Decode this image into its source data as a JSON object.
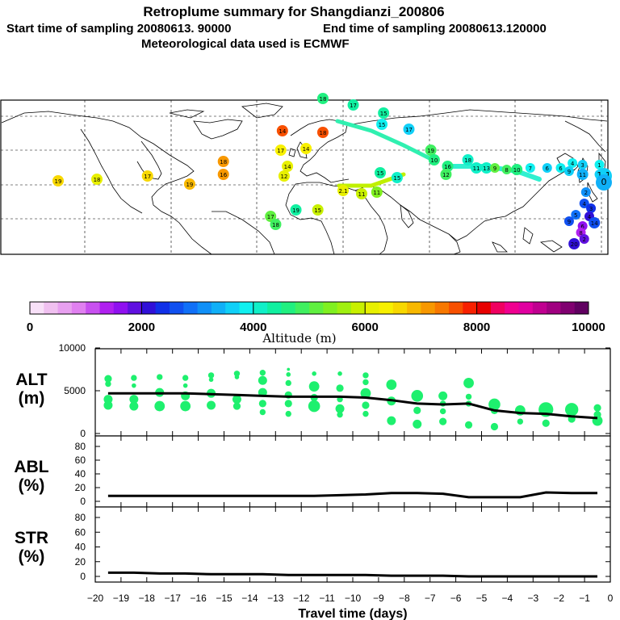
{
  "header": {
    "title": "Retroplume summary for Shangdianzi_200806",
    "start_label": "Start time of sampling 20080613. 90000",
    "end_label": "End time of sampling 20080613.120000",
    "met_label": "Meteorological data used is ECMWF"
  },
  "colorbar": {
    "ticks": [
      "0",
      "2000",
      "4000",
      "6000",
      "8000",
      "10000"
    ],
    "label": "Altitude (m)",
    "colors": [
      "#f8e0f8",
      "#f0c0f0",
      "#e8a0f0",
      "#e080f0",
      "#c850f0",
      "#b020f0",
      "#9010f0",
      "#6010e0",
      "#3010d8",
      "#1030e8",
      "#1050f0",
      "#1070f8",
      "#1090f8",
      "#10b0f8",
      "#10d0f8",
      "#10f0f0",
      "#10f0c8",
      "#10f0a0",
      "#20f080",
      "#40f060",
      "#60f040",
      "#80f020",
      "#a0f010",
      "#c8f000",
      "#e8f000",
      "#f8f000",
      "#f8d800",
      "#f8b800",
      "#f89800",
      "#f87800",
      "#f85000",
      "#f82000",
      "#e80000",
      "#f00060",
      "#f00090",
      "#e000a0",
      "#c00090",
      "#a00080",
      "#800070",
      "#600060"
    ]
  },
  "map_labels": [
    {
      "lon": -135,
      "lat": 3,
      "text": "19",
      "alt": 6500
    },
    {
      "lon": -112,
      "lat": 4,
      "text": "18",
      "alt": 6200
    },
    {
      "lon": -82,
      "lat": 6,
      "text": "17",
      "alt": 6500
    },
    {
      "lon": -57,
      "lat": 1,
      "text": "19",
      "alt": 6800
    },
    {
      "lon": -37,
      "lat": 15,
      "text": "18",
      "alt": 7000
    },
    {
      "lon": -37,
      "lat": 7,
      "text": "16",
      "alt": 7200
    },
    {
      "lon": -3,
      "lat": 22,
      "text": "17",
      "alt": 6400
    },
    {
      "lon": -2,
      "lat": 34,
      "text": "14",
      "alt": 7500
    },
    {
      "lon": 22,
      "lat": 33,
      "text": "18",
      "alt": 7600
    },
    {
      "lon": 12,
      "lat": 23,
      "text": "14",
      "alt": 6300
    },
    {
      "lon": 1,
      "lat": 12,
      "text": "14",
      "alt": 6000
    },
    {
      "lon": -1,
      "lat": 6,
      "text": "12",
      "alt": 6100
    },
    {
      "lon": -9,
      "lat": -19,
      "text": "17",
      "alt": 5000
    },
    {
      "lon": -6,
      "lat": -24,
      "text": "18",
      "alt": 4800
    },
    {
      "lon": 6,
      "lat": -15,
      "text": "19",
      "alt": 4400
    },
    {
      "lon": 19,
      "lat": -15,
      "text": "15",
      "alt": 5800
    },
    {
      "lon": 34,
      "lat": -3,
      "text": "2.1",
      "alt": 6000
    },
    {
      "lon": 45,
      "lat": -5,
      "text": "11",
      "alt": 5800
    },
    {
      "lon": 54,
      "lat": -4,
      "text": "11",
      "alt": 5400
    },
    {
      "lon": 56,
      "lat": 8,
      "text": "15",
      "alt": 4400
    },
    {
      "lon": 66,
      "lat": 5,
      "text": "15",
      "alt": 4200
    },
    {
      "lon": 57,
      "lat": 38,
      "text": "15",
      "alt": 3800
    },
    {
      "lon": 73,
      "lat": 35,
      "text": "17",
      "alt": 3600
    },
    {
      "lon": 86,
      "lat": 22,
      "text": "19",
      "alt": 4800
    },
    {
      "lon": 88,
      "lat": 16,
      "text": "10",
      "alt": 4600
    },
    {
      "lon": 96,
      "lat": 12,
      "text": "16",
      "alt": 4700
    },
    {
      "lon": 95,
      "lat": 7,
      "text": "12",
      "alt": 4900
    },
    {
      "lon": 108,
      "lat": 16,
      "text": "18",
      "alt": 4000
    },
    {
      "lon": 113,
      "lat": 11,
      "text": "11",
      "alt": 4200
    },
    {
      "lon": 119,
      "lat": 11,
      "text": "13",
      "alt": 4200
    },
    {
      "lon": 124,
      "lat": 11,
      "text": "9",
      "alt": 5000
    },
    {
      "lon": 131,
      "lat": 10,
      "text": "8",
      "alt": 4900
    },
    {
      "lon": 137,
      "lat": 10,
      "text": "10",
      "alt": 4700
    },
    {
      "lon": 145,
      "lat": 11,
      "text": "7",
      "alt": 3900
    },
    {
      "lon": 155,
      "lat": 11,
      "text": "6",
      "alt": 3700
    },
    {
      "lon": 163,
      "lat": 11,
      "text": "6",
      "alt": 3900
    },
    {
      "lon": 170,
      "lat": 14,
      "text": "4",
      "alt": 3800
    },
    {
      "lon": 168,
      "lat": 9,
      "text": "9",
      "alt": 3500
    },
    {
      "lon": 176,
      "lat": 13,
      "text": "3",
      "alt": 3600
    },
    {
      "lon": 176,
      "lat": 7,
      "text": "11",
      "alt": 3400
    },
    {
      "lon": 186,
      "lat": 13,
      "text": "1",
      "alt": 3800
    },
    {
      "lon": 186,
      "lat": 7,
      "text": "5",
      "alt": 3600
    },
    {
      "lon": 199,
      "lat": 6,
      "text": "1.1",
      "alt": 3500
    },
    {
      "lon": 190,
      "lat": 2,
      "text": "0",
      "alt": 3300
    },
    {
      "lon": 178,
      "lat": -4,
      "text": "2",
      "alt": 3000
    },
    {
      "lon": 177,
      "lat": -11,
      "text": "4",
      "alt": 2500
    },
    {
      "lon": 181,
      "lat": -14,
      "text": "3",
      "alt": 2300
    },
    {
      "lon": 180,
      "lat": -19,
      "text": "4",
      "alt": 2200
    },
    {
      "lon": 172,
      "lat": -18,
      "text": "5",
      "alt": 2800
    },
    {
      "lon": 168,
      "lat": -22,
      "text": "9",
      "alt": 2700
    },
    {
      "lon": 183,
      "lat": -23,
      "text": "14",
      "alt": 2600
    },
    {
      "lon": 176,
      "lat": -25,
      "text": "6",
      "alt": 1500
    },
    {
      "lon": 175,
      "lat": -29,
      "text": "8",
      "alt": 1300
    },
    {
      "lon": 177,
      "lat": -33,
      "text": "2",
      "alt": 1800
    },
    {
      "lon": 171,
      "lat": -36,
      "text": "20",
      "alt": 2000
    },
    {
      "lon": 22,
      "lat": 54,
      "text": "18",
      "alt": 4500
    },
    {
      "lon": 40,
      "lat": 50,
      "text": "17",
      "alt": 4400
    },
    {
      "lon": 58,
      "lat": 45,
      "text": "15",
      "alt": 4300
    }
  ],
  "chart_data": [
    {
      "type": "scatter",
      "name": "ALT",
      "ylabel": "ALT\n(m)",
      "ylabel_line1": "ALT",
      "ylabel_line2": "(m)",
      "ylim": [
        0,
        10000
      ],
      "yticks": [
        "0",
        "5000",
        "10000"
      ],
      "xlim": [
        -20,
        0
      ],
      "line_x": [
        -19.5,
        -18.5,
        -17.5,
        -16.5,
        -15.5,
        -14.5,
        -13.5,
        -12.5,
        -11.5,
        -10.5,
        -9.5,
        -8.5,
        -7.5,
        -6.5,
        -5.5,
        -4.5,
        -3.5,
        -2.5,
        -1.5,
        -0.5
      ],
      "line_y": [
        4700,
        4700,
        4700,
        4700,
        4600,
        4500,
        4400,
        4300,
        4300,
        4300,
        4200,
        3900,
        3500,
        3400,
        3500,
        2700,
        2400,
        2300,
        2000,
        1800
      ],
      "points": [
        {
          "x": -19.5,
          "y": 6400,
          "s": 4
        },
        {
          "x": -19.5,
          "y": 5800,
          "s": 3
        },
        {
          "x": -19.5,
          "y": 4000,
          "s": 5
        },
        {
          "x": -19.5,
          "y": 3300,
          "s": 5
        },
        {
          "x": -18.5,
          "y": 6500,
          "s": 3
        },
        {
          "x": -18.5,
          "y": 5600,
          "s": 2
        },
        {
          "x": -18.5,
          "y": 4000,
          "s": 5
        },
        {
          "x": -18.5,
          "y": 3200,
          "s": 5
        },
        {
          "x": -17.5,
          "y": 6600,
          "s": 3
        },
        {
          "x": -17.5,
          "y": 4800,
          "s": 5
        },
        {
          "x": -17.5,
          "y": 3200,
          "s": 6
        },
        {
          "x": -16.5,
          "y": 6500,
          "s": 3
        },
        {
          "x": -16.5,
          "y": 5600,
          "s": 2
        },
        {
          "x": -16.5,
          "y": 4400,
          "s": 5
        },
        {
          "x": -16.5,
          "y": 3200,
          "s": 6
        },
        {
          "x": -15.5,
          "y": 6800,
          "s": 3
        },
        {
          "x": -15.5,
          "y": 6300,
          "s": 2
        },
        {
          "x": -15.5,
          "y": 4700,
          "s": 5
        },
        {
          "x": -15.5,
          "y": 3300,
          "s": 5
        },
        {
          "x": -14.5,
          "y": 7000,
          "s": 3
        },
        {
          "x": -14.5,
          "y": 6600,
          "s": 2
        },
        {
          "x": -14.5,
          "y": 4000,
          "s": 5
        },
        {
          "x": -14.5,
          "y": 3200,
          "s": 4
        },
        {
          "x": -13.5,
          "y": 7100,
          "s": 3
        },
        {
          "x": -13.5,
          "y": 6200,
          "s": 5
        },
        {
          "x": -13.5,
          "y": 4800,
          "s": 5
        },
        {
          "x": -13.5,
          "y": 3500,
          "s": 4
        },
        {
          "x": -13.5,
          "y": 2500,
          "s": 3
        },
        {
          "x": -12.5,
          "y": 7500,
          "s": 1
        },
        {
          "x": -12.5,
          "y": 6900,
          "s": 2
        },
        {
          "x": -12.5,
          "y": 5900,
          "s": 3
        },
        {
          "x": -12.5,
          "y": 4500,
          "s": 4
        },
        {
          "x": -12.5,
          "y": 3500,
          "s": 4
        },
        {
          "x": -12.5,
          "y": 2300,
          "s": 3
        },
        {
          "x": -11.5,
          "y": 7000,
          "s": 2
        },
        {
          "x": -11.5,
          "y": 5500,
          "s": 6
        },
        {
          "x": -11.5,
          "y": 4200,
          "s": 4
        },
        {
          "x": -11.5,
          "y": 3200,
          "s": 7
        },
        {
          "x": -10.5,
          "y": 7000,
          "s": 2
        },
        {
          "x": -10.5,
          "y": 5300,
          "s": 4
        },
        {
          "x": -10.5,
          "y": 4000,
          "s": 3
        },
        {
          "x": -10.5,
          "y": 2900,
          "s": 5
        },
        {
          "x": -10.5,
          "y": 2200,
          "s": 3
        },
        {
          "x": -9.5,
          "y": 6800,
          "s": 3
        },
        {
          "x": -9.5,
          "y": 6000,
          "s": 3
        },
        {
          "x": -9.5,
          "y": 4700,
          "s": 6
        },
        {
          "x": -9.5,
          "y": 3300,
          "s": 4
        },
        {
          "x": -9.5,
          "y": 2300,
          "s": 3
        },
        {
          "x": -8.5,
          "y": 5700,
          "s": 6
        },
        {
          "x": -8.5,
          "y": 3800,
          "s": 5
        },
        {
          "x": -8.5,
          "y": 1500,
          "s": 5
        },
        {
          "x": -7.5,
          "y": 4400,
          "s": 7
        },
        {
          "x": -7.5,
          "y": 2700,
          "s": 4
        },
        {
          "x": -7.5,
          "y": 1100,
          "s": 5
        },
        {
          "x": -6.5,
          "y": 4400,
          "s": 5
        },
        {
          "x": -6.5,
          "y": 3500,
          "s": 3
        },
        {
          "x": -6.5,
          "y": 2600,
          "s": 3
        },
        {
          "x": -6.5,
          "y": 1400,
          "s": 4
        },
        {
          "x": -5.5,
          "y": 5900,
          "s": 6
        },
        {
          "x": -5.5,
          "y": 4300,
          "s": 3
        },
        {
          "x": -5.5,
          "y": 3500,
          "s": 3
        },
        {
          "x": -5.5,
          "y": 1000,
          "s": 4
        },
        {
          "x": -4.5,
          "y": 3400,
          "s": 7
        },
        {
          "x": -4.5,
          "y": 2700,
          "s": 4
        },
        {
          "x": -4.5,
          "y": 800,
          "s": 4
        },
        {
          "x": -3.5,
          "y": 2700,
          "s": 6
        },
        {
          "x": -3.5,
          "y": 1400,
          "s": 3
        },
        {
          "x": -2.5,
          "y": 2800,
          "s": 9
        },
        {
          "x": -2.5,
          "y": 1200,
          "s": 4
        },
        {
          "x": -1.5,
          "y": 2800,
          "s": 8
        },
        {
          "x": -1.5,
          "y": 1700,
          "s": 4
        },
        {
          "x": -0.5,
          "y": 3000,
          "s": 4
        },
        {
          "x": -0.5,
          "y": 2200,
          "s": 4
        },
        {
          "x": -0.5,
          "y": 1500,
          "s": 6
        }
      ]
    },
    {
      "type": "line",
      "name": "ABL",
      "ylabel_line1": "ABL",
      "ylabel_line2": "(%)",
      "ylim": [
        0,
        90
      ],
      "yticks": [
        "0",
        "20",
        "40",
        "60",
        "80"
      ],
      "xlim": [
        -20,
        0
      ],
      "x": [
        -19.5,
        -18.5,
        -17.5,
        -16.5,
        -15.5,
        -14.5,
        -13.5,
        -12.5,
        -11.5,
        -10.5,
        -9.5,
        -8.5,
        -7.5,
        -6.5,
        -5.5,
        -4.5,
        -3.5,
        -2.5,
        -1.5,
        -0.5
      ],
      "y": [
        8,
        8,
        8,
        8,
        8,
        8,
        8,
        8,
        8,
        9,
        10,
        12,
        12,
        11,
        6,
        6,
        6,
        13,
        12,
        12
      ]
    },
    {
      "type": "line",
      "name": "STR",
      "ylabel_line1": "STR",
      "ylabel_line2": "(%)",
      "ylim": [
        0,
        90
      ],
      "yticks": [
        "0",
        "20",
        "40",
        "60",
        "80"
      ],
      "xlim": [
        -20,
        0
      ],
      "xticks": [
        "−20",
        "−19",
        "−18",
        "−17",
        "−16",
        "−15",
        "−14",
        "−13",
        "−12",
        "−11",
        "−10",
        "−9",
        "−8",
        "−7",
        "−6",
        "−5",
        "−4",
        "−3",
        "−2",
        "−1",
        "0"
      ],
      "xlabel": "Travel time (days)",
      "x": [
        -19.5,
        -18.5,
        -17.5,
        -16.5,
        -15.5,
        -14.5,
        -13.5,
        -12.5,
        -11.5,
        -10.5,
        -9.5,
        -8.5,
        -7.5,
        -6.5,
        -5.5,
        -4.5,
        -3.5,
        -2.5,
        -1.5,
        -0.5
      ],
      "y": [
        5,
        5,
        4,
        4,
        3,
        3,
        3,
        2,
        2,
        2,
        2,
        1,
        1,
        1,
        0,
        0,
        0,
        0,
        0,
        0
      ]
    }
  ]
}
